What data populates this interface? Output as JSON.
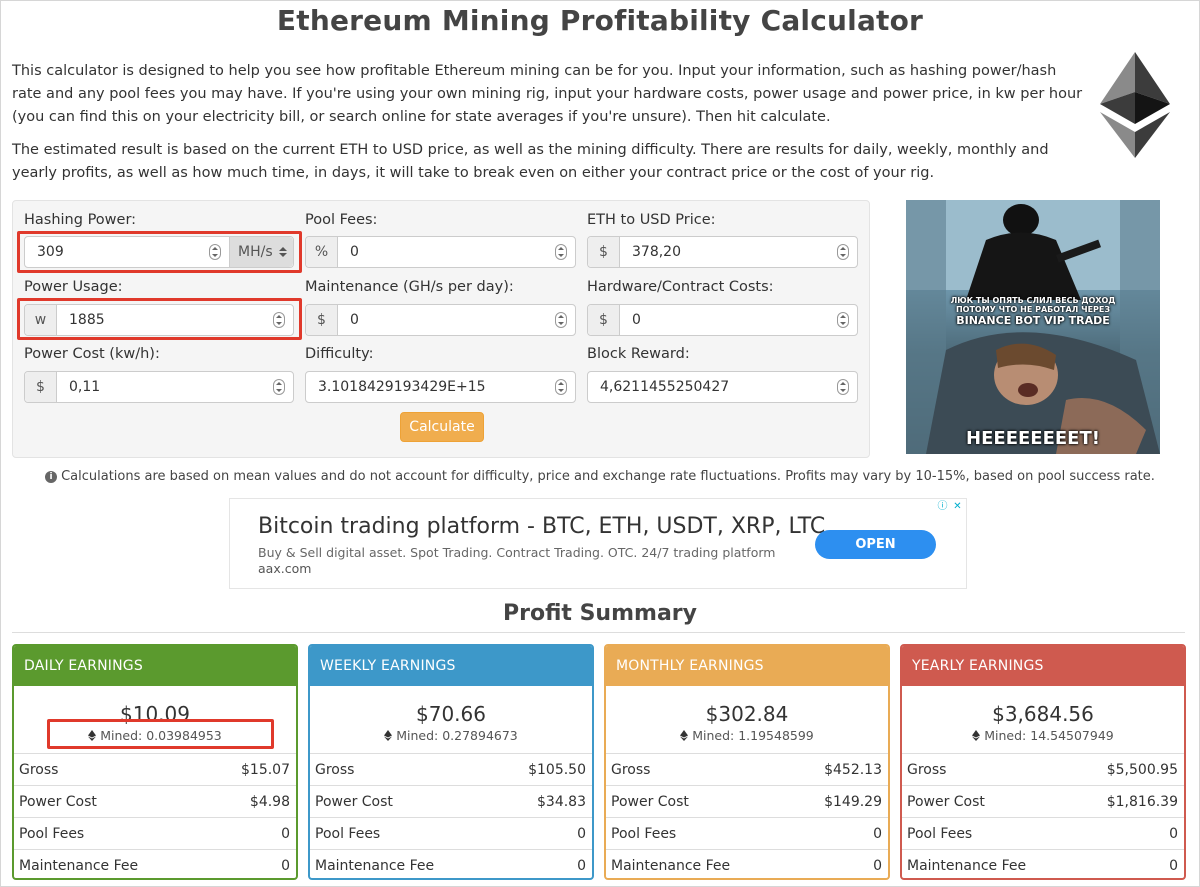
{
  "title": "Ethereum Mining Profitability Calculator",
  "intro": {
    "p1": "This calculator is designed to help you see how profitable Ethereum mining can be for you. Input your information, such as hashing power/hash rate and any pool fees you may have. If you're using your own mining rig, input your hardware costs, power usage and power price, in kw per hour (you can find this on your electricity bill, or search online for state averages if you're unsure). Then hit calculate.",
    "p2": "The estimated result is based on the current ETH to USD price, as well as the mining difficulty. There are results for daily, weekly, monthly and yearly profits, as well as how much time, in days, it will take to break even on either your contract price or the cost of your rig."
  },
  "form": {
    "hashing_power": {
      "label": "Hashing Power:",
      "value": "309",
      "unit": "MH/s"
    },
    "pool_fees": {
      "label": "Pool Fees:",
      "addon": "%",
      "value": "0"
    },
    "eth_usd": {
      "label": "ETH to USD Price:",
      "addon": "$",
      "value": "378,20"
    },
    "power_usage": {
      "label": "Power Usage:",
      "addon": "w",
      "value": "1885"
    },
    "maintenance": {
      "label": "Maintenance (GH/s per day):",
      "addon": "$",
      "value": "0"
    },
    "hardware": {
      "label": "Hardware/Contract Costs:",
      "addon": "$",
      "value": "0"
    },
    "power_cost": {
      "label": "Power Cost (kw/h):",
      "addon": "$",
      "value": "0,11"
    },
    "difficulty": {
      "label": "Difficulty:",
      "value": "3.1018429193429E+15"
    },
    "block_reward": {
      "label": "Block Reward:",
      "value": "4,6211455250427"
    },
    "calculate_label": "Calculate"
  },
  "meme": {
    "top_caption_1": "ЛЮК ТЫ ОПЯТЬ СЛИЛ ВЕСЬ ДОХОД",
    "top_caption_2": "ПОТОМУ ЧТО НЕ РАБОТАЛ ЧЕРЕЗ",
    "top_caption_3": "BINANCE BOT VIP TRADE",
    "bottom_caption": "HEEEEEEEET!"
  },
  "note": "Calculations are based on mean values and do not account for difficulty, price and exchange rate fluctuations. Profits may vary by 10-15%, based on pool success rate.",
  "ad": {
    "title": "Bitcoin trading platform - BTC, ETH, USDT, XRP, LTC",
    "description": "Buy & Sell digital asset. Spot Trading. Contract Trading. OTC. 24/7 trading platform",
    "url": "aax.com",
    "button": "OPEN"
  },
  "summary_title": "Profit Summary",
  "cards": [
    {
      "header": "DAILY EARNINGS",
      "amount": "$10.09",
      "mined": "Mined: 0.03984953",
      "gross": "$15.07",
      "power_cost": "$4.98",
      "pool_fees": "0",
      "maintenance": "0",
      "color": "#5b9a2e"
    },
    {
      "header": "WEEKLY EARNINGS",
      "amount": "$70.66",
      "mined": "Mined: 0.27894673",
      "gross": "$105.50",
      "power_cost": "$34.83",
      "pool_fees": "0",
      "maintenance": "0",
      "color": "#3d98c9"
    },
    {
      "header": "MONTHLY EARNINGS",
      "amount": "$302.84",
      "mined": "Mined: 1.19548599",
      "gross": "$452.13",
      "power_cost": "$149.29",
      "pool_fees": "0",
      "maintenance": "0",
      "color": "#e9ab55"
    },
    {
      "header": "YEARLY EARNINGS",
      "amount": "$3,684.56",
      "mined": "Mined: 14.54507949",
      "gross": "$5,500.95",
      "power_cost": "$1,816.39",
      "pool_fees": "0",
      "maintenance": "0",
      "color": "#cf5a4f"
    }
  ],
  "row_labels": {
    "gross": "Gross",
    "power_cost": "Power Cost",
    "pool_fees": "Pool Fees",
    "maintenance": "Maintenance Fee"
  }
}
